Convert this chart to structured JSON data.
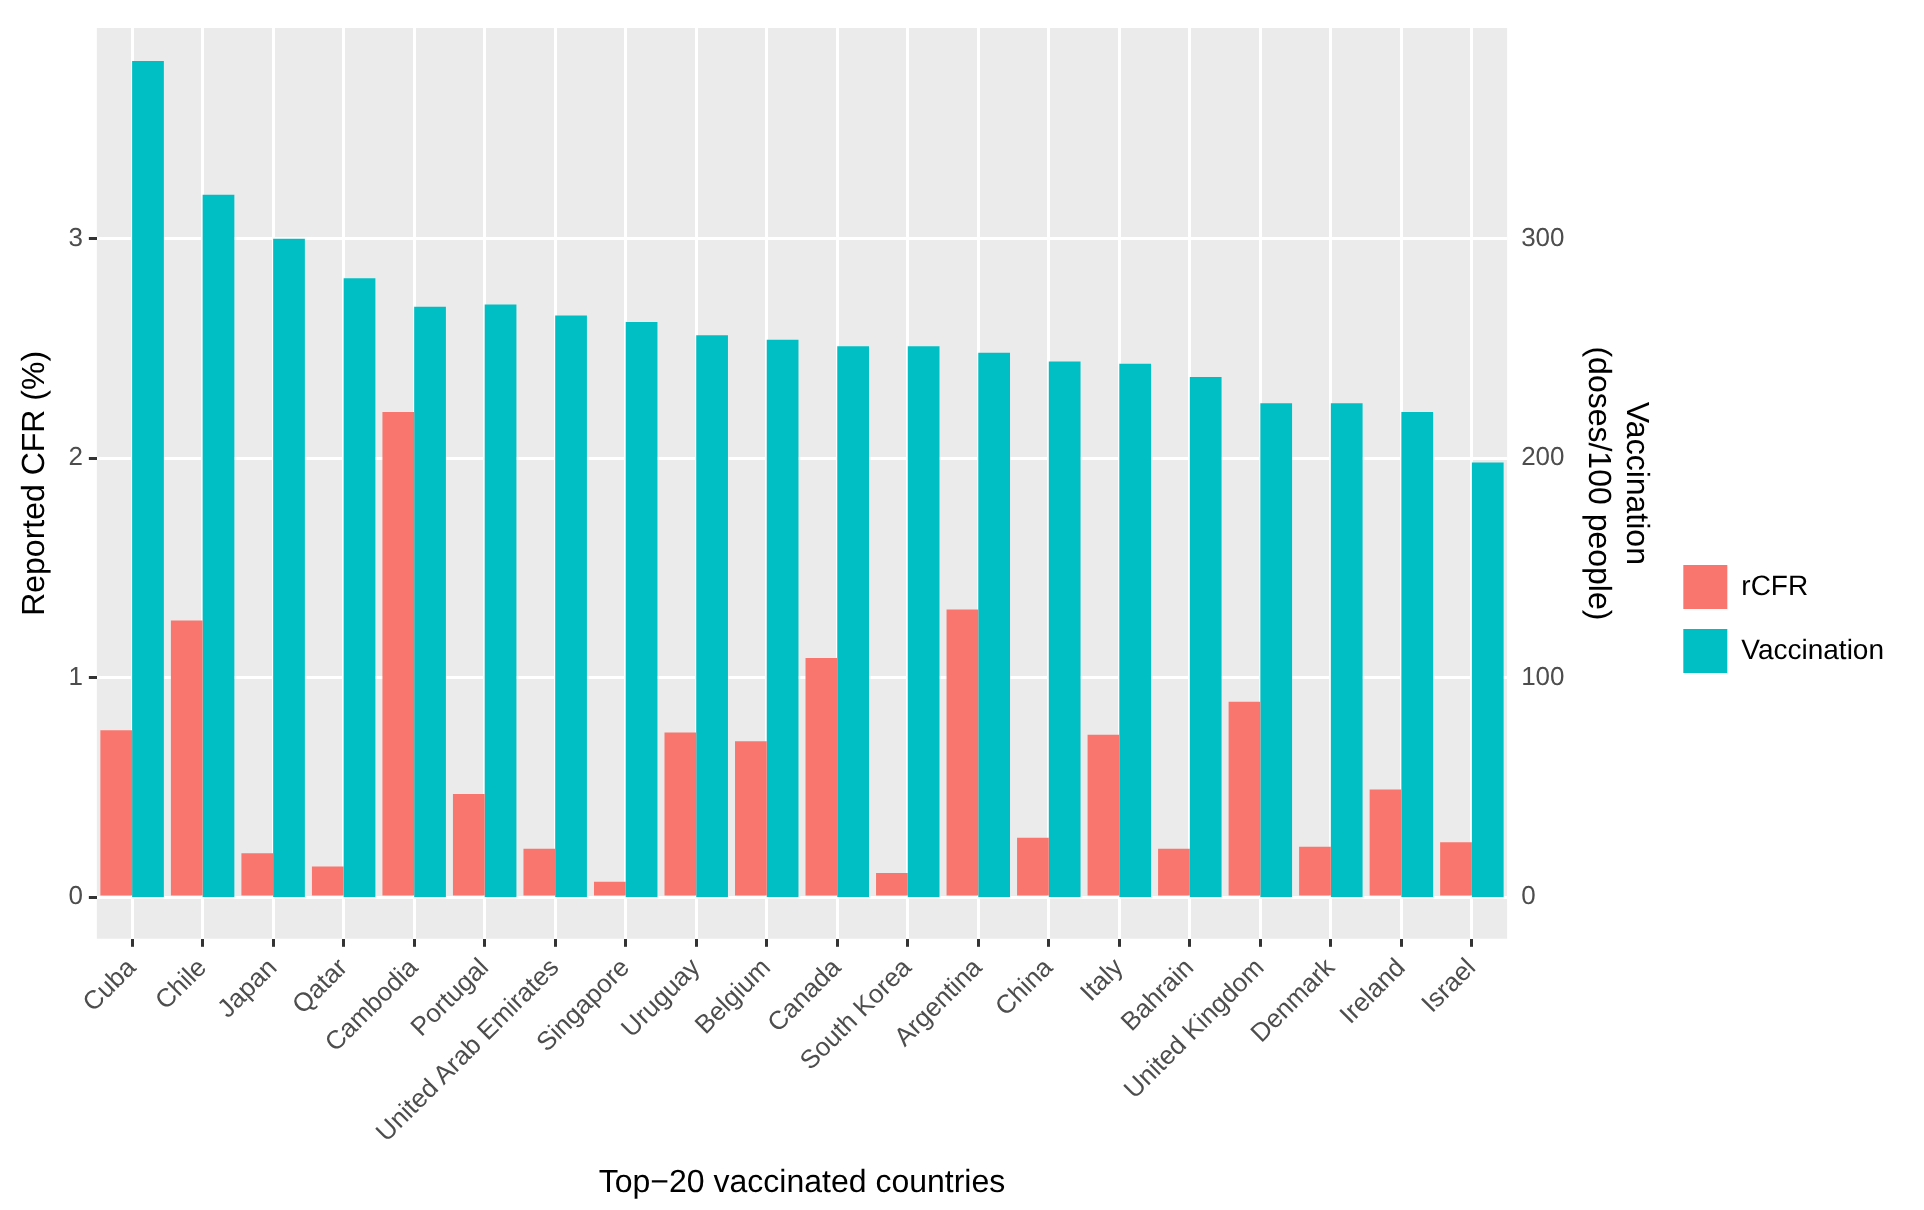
{
  "chart_data": {
    "type": "bar",
    "xlabel": "Top−20 vaccinated countries",
    "ylabel": "Reported CFR (%)",
    "y2label": "Vaccination (doses/100 people)",
    "categories": [
      "Cuba",
      "Chile",
      "Japan",
      "Qatar",
      "Cambodia",
      "Portugal",
      "United Arab Emirates",
      "Singapore",
      "Uruguay",
      "Belgium",
      "Canada",
      "South Korea",
      "Argentina",
      "China",
      "Italy",
      "Bahrain",
      "United Kingdom",
      "Denmark",
      "Ireland",
      "Israel"
    ],
    "series": [
      {
        "name": "rCFR",
        "color": "#f8766d",
        "values": [
          0.76,
          1.26,
          0.2,
          0.14,
          2.21,
          0.47,
          0.22,
          0.07,
          0.75,
          0.71,
          1.09,
          0.11,
          1.31,
          0.27,
          0.74,
          0.22,
          0.89,
          0.23,
          0.49,
          0.25
        ]
      },
      {
        "name": "Vaccination",
        "color": "#00bfc4",
        "axis": "y2",
        "values": [
          381,
          320,
          300,
          282,
          269,
          270,
          265,
          262,
          256,
          254,
          251,
          251,
          248,
          244,
          243,
          237,
          225,
          225,
          221,
          198
        ]
      }
    ],
    "ylim": [
      -0.19,
      3.96
    ],
    "yticks": [
      0,
      1,
      2,
      3
    ],
    "y2lim": [
      -19,
      396
    ],
    "y2ticks": [
      0,
      100,
      200,
      300
    ],
    "grid": true,
    "legend": "right"
  }
}
